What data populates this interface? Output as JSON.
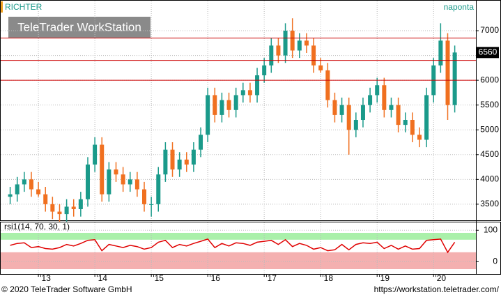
{
  "chart_data": [
    {
      "type": "candlestick",
      "title": "RICHTER",
      "interval": "naponta",
      "watermark": "TeleTrader WorkStation",
      "x": [
        2012.5,
        2012.625,
        2012.75,
        2012.875,
        2013,
        2013.125,
        2013.25,
        2013.375,
        2013.5,
        2013.625,
        2013.75,
        2013.875,
        2014,
        2014.125,
        2014.25,
        2014.375,
        2014.5,
        2014.625,
        2014.75,
        2014.875,
        2015,
        2015.125,
        2015.25,
        2015.375,
        2015.5,
        2015.625,
        2015.75,
        2015.875,
        2016,
        2016.125,
        2016.25,
        2016.375,
        2016.5,
        2016.625,
        2016.75,
        2016.875,
        2017,
        2017.125,
        2017.25,
        2017.375,
        2017.5,
        2017.625,
        2017.75,
        2017.875,
        2018,
        2018.125,
        2018.25,
        2018.375,
        2018.5,
        2018.625,
        2018.75,
        2018.875,
        2019,
        2019.125,
        2019.25,
        2019.375,
        2019.5,
        2019.625,
        2019.75,
        2019.875,
        2020,
        2020.125,
        2020.25,
        2020.375
      ],
      "open": [
        3650,
        3700,
        3900,
        4000,
        3800,
        3700,
        3500,
        3350,
        3300,
        3450,
        3400,
        3600,
        4300,
        4700,
        3700,
        4200,
        4100,
        3900,
        4000,
        3800,
        3500,
        3500,
        4100,
        4600,
        4200,
        4400,
        4300,
        4600,
        4900,
        5700,
        5300,
        5600,
        5400,
        5700,
        5800,
        5700,
        6100,
        6300,
        6700,
        6500,
        7000,
        6600,
        6800,
        6700,
        6300,
        6200,
        5600,
        5300,
        5500,
        5000,
        5200,
        5500,
        5700,
        5900,
        5400,
        5500,
        5100,
        5200,
        4900,
        4800,
        5700,
        6300,
        6800,
        5500
      ],
      "high": [
        3850,
        4050,
        4150,
        4150,
        3950,
        3850,
        3650,
        3500,
        3600,
        3600,
        3750,
        4450,
        4850,
        4850,
        4350,
        4350,
        4250,
        4150,
        4150,
        3950,
        3650,
        4250,
        4750,
        4750,
        4550,
        4550,
        4750,
        5050,
        5850,
        5850,
        5750,
        5750,
        5850,
        5950,
        5950,
        6250,
        6450,
        6850,
        6850,
        7150,
        7250,
        6950,
        6950,
        6850,
        6450,
        6350,
        5750,
        5650,
        5650,
        5350,
        5650,
        5850,
        6050,
        6050,
        5650,
        5650,
        5350,
        5350,
        5050,
        5850,
        6450,
        7150,
        6950,
        6700
      ],
      "low": [
        3500,
        3550,
        3750,
        3650,
        3650,
        3350,
        3200,
        3150,
        3150,
        3250,
        3250,
        3450,
        4150,
        3550,
        3550,
        3950,
        3750,
        3750,
        3650,
        3350,
        3250,
        3350,
        3950,
        4050,
        4050,
        4150,
        4150,
        4450,
        4750,
        5150,
        5150,
        5250,
        5250,
        5550,
        5550,
        5550,
        5950,
        6150,
        6350,
        6350,
        6450,
        6450,
        6550,
        6150,
        6150,
        5450,
        5150,
        5150,
        4500,
        4850,
        5050,
        5350,
        5550,
        5250,
        5250,
        4950,
        4950,
        4750,
        4650,
        4650,
        5550,
        6150,
        5200,
        5350
      ],
      "close": [
        3700,
        3900,
        4000,
        3800,
        3700,
        3500,
        3350,
        3300,
        3450,
        3400,
        3600,
        4300,
        4700,
        3700,
        4200,
        4100,
        3900,
        4000,
        3800,
        3500,
        3500,
        4100,
        4600,
        4200,
        4400,
        4300,
        4600,
        4900,
        5700,
        5300,
        5600,
        5400,
        5700,
        5800,
        5700,
        6100,
        6300,
        6700,
        6500,
        7000,
        6600,
        6800,
        6700,
        6300,
        6200,
        5600,
        5300,
        5500,
        5000,
        5200,
        5500,
        5700,
        5900,
        5400,
        5500,
        5100,
        5200,
        4900,
        4800,
        5700,
        6300,
        6800,
        5500,
        6560
      ],
      "up_color": "#1a9a8a",
      "down_color": "#f07020",
      "hlines": [
        6850,
        6400,
        6000
      ],
      "hline_color": "#cc0000",
      "last_price": 6560,
      "xlim": [
        2012.32,
        2020.75
      ],
      "ylim": [
        3175,
        7605
      ],
      "xticks": [
        {
          "value": 2013,
          "label": "'13"
        },
        {
          "value": 2014,
          "label": "'14"
        },
        {
          "value": 2015,
          "label": "'15"
        },
        {
          "value": 2016,
          "label": "'16"
        },
        {
          "value": 2017,
          "label": "'17"
        },
        {
          "value": 2018,
          "label": "'18"
        },
        {
          "value": 2019,
          "label": "'19"
        },
        {
          "value": 2020,
          "label": "'20"
        }
      ],
      "yticks": [
        3500,
        4000,
        4500,
        5000,
        5500,
        6000,
        6500,
        7000
      ],
      "grid": true
    },
    {
      "type": "line",
      "title": "rsi1(14, 70, 30, 1)",
      "color": "#e00000",
      "values": [
        52,
        58,
        60,
        45,
        48,
        42,
        40,
        45,
        55,
        50,
        58,
        68,
        70,
        35,
        55,
        50,
        45,
        52,
        48,
        40,
        45,
        62,
        68,
        45,
        55,
        50,
        58,
        65,
        72,
        45,
        58,
        50,
        60,
        58,
        52,
        62,
        65,
        68,
        55,
        70,
        48,
        58,
        52,
        40,
        45,
        35,
        38,
        55,
        38,
        55,
        60,
        58,
        62,
        42,
        52,
        40,
        50,
        40,
        42,
        68,
        70,
        72,
        30,
        62
      ],
      "overbought": 70,
      "oversold": 30,
      "ylim": [
        -39,
        125
      ],
      "yticks": [
        0,
        100
      ],
      "grid": true
    }
  ],
  "footer": {
    "left": "© 2020 TeleTrader Software GmbH",
    "right": "https://workstation.teletrader.com/"
  }
}
